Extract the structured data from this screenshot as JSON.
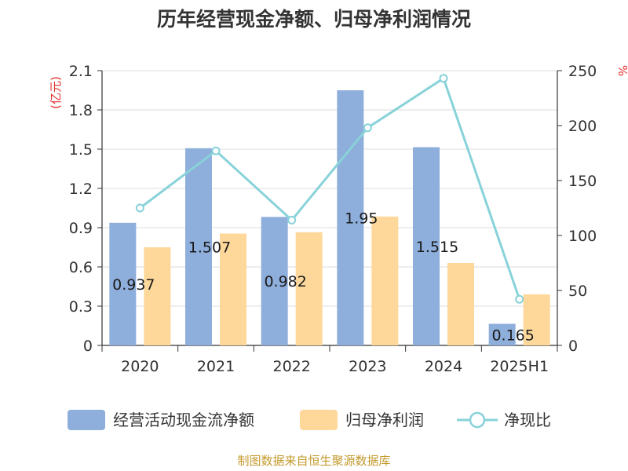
{
  "title": "历年经营现金净额、归母净利润情况",
  "source": "制图数据来自恒生聚源数据库",
  "chart_data": {
    "type": "bar",
    "title": "历年经营现金净额、归母净利润情况",
    "categories": [
      "2020",
      "2021",
      "2022",
      "2023",
      "2024",
      "2025H1"
    ],
    "left_axis": {
      "unit": "(亿元)",
      "ylim": [
        0,
        2.1
      ],
      "ticks": [
        "0",
        "0.3",
        "0.6",
        "0.9",
        "1.2",
        "1.5",
        "1.8",
        "2.1"
      ]
    },
    "right_axis": {
      "unit": "%",
      "ylim": [
        0,
        250
      ],
      "ticks": [
        "0",
        "50",
        "100",
        "150",
        "200",
        "250"
      ]
    },
    "series": [
      {
        "name": "经营活动现金流净额",
        "type": "bar",
        "axis": "left",
        "color": "#8eaedb",
        "values": [
          0.937,
          1.507,
          0.982,
          1.95,
          1.515,
          0.165
        ],
        "labels": [
          "0.937",
          "1.507",
          "0.982",
          "1.95",
          "1.515",
          "0.165"
        ]
      },
      {
        "name": "归母净利润",
        "type": "bar",
        "axis": "left",
        "color": "#fdd89a",
        "values": [
          0.75,
          0.855,
          0.865,
          0.985,
          0.63,
          0.39
        ]
      },
      {
        "name": "净现比",
        "type": "line",
        "axis": "right",
        "color": "#88d2d9",
        "values": [
          125,
          177,
          114,
          198,
          243,
          42
        ]
      }
    ],
    "grid": true,
    "legend_position": "bottom"
  }
}
